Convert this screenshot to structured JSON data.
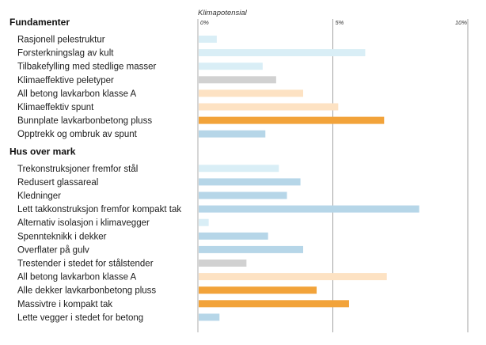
{
  "chart_data": {
    "type": "bar",
    "orientation": "horizontal",
    "xlabel": "Klimapotensial",
    "xlim": [
      0,
      10
    ],
    "ticks": [
      {
        "value": 0,
        "label": "0%"
      },
      {
        "value": 5,
        "label": "5%"
      },
      {
        "value": 10,
        "label": "10%"
      }
    ],
    "grid": true,
    "colors": {
      "light_blue": "#d9eef6",
      "blue": "#b6d6e8",
      "gray": "#d1d1d1",
      "light_orange": "#fde2c3",
      "orange": "#f2a33a"
    },
    "groups": [
      {
        "name": "Fundamenter",
        "items": [
          {
            "label": "Rasjonell pelestruktur",
            "value": 0.7,
            "color": "light_blue"
          },
          {
            "label": "Forsterkningslag av kult",
            "value": 6.2,
            "color": "light_blue"
          },
          {
            "label": "Tilbakefylling med stedlige masser",
            "value": 2.4,
            "color": "light_blue"
          },
          {
            "label": "Klimaeffektive peletyper",
            "value": 2.9,
            "color": "gray"
          },
          {
            "label": "All betong lavkarbon klasse A",
            "value": 3.9,
            "color": "light_orange"
          },
          {
            "label": "Klimaeffektiv spunt",
            "value": 5.2,
            "color": "light_orange"
          },
          {
            "label": "Bunnplate lavkarbonbetong pluss",
            "value": 6.9,
            "color": "orange"
          },
          {
            "label": "Opptrekk og ombruk av spunt",
            "value": 2.5,
            "color": "blue"
          }
        ]
      },
      {
        "name": "Hus over mark",
        "items": [
          {
            "label": "Trekonstruksjoner fremfor stål",
            "value": 3.0,
            "color": "light_blue"
          },
          {
            "label": "Redusert glassareal",
            "value": 3.8,
            "color": "blue"
          },
          {
            "label": "Kledninger",
            "value": 3.3,
            "color": "blue"
          },
          {
            "label": "Lett takkonstruksjon fremfor kompakt tak",
            "value": 8.2,
            "color": "blue"
          },
          {
            "label": "Alternativ isolasjon i klimavegger",
            "value": 0.4,
            "color": "light_blue"
          },
          {
            "label": "Spennteknikk i dekker",
            "value": 2.6,
            "color": "blue"
          },
          {
            "label": "Overflater på gulv",
            "value": 3.9,
            "color": "blue"
          },
          {
            "label": "Trestender i stedet for stålstender",
            "value": 1.8,
            "color": "gray"
          },
          {
            "label": "All betong lavkarbon klasse A",
            "value": 7.0,
            "color": "light_orange"
          },
          {
            "label": "Alle dekker lavkarbonbetong pluss",
            "value": 4.4,
            "color": "orange"
          },
          {
            "label": "Massivtre i kompakt tak",
            "value": 5.6,
            "color": "orange"
          },
          {
            "label": "Lette vegger i stedet for betong",
            "value": 0.8,
            "color": "blue"
          }
        ]
      }
    ]
  }
}
